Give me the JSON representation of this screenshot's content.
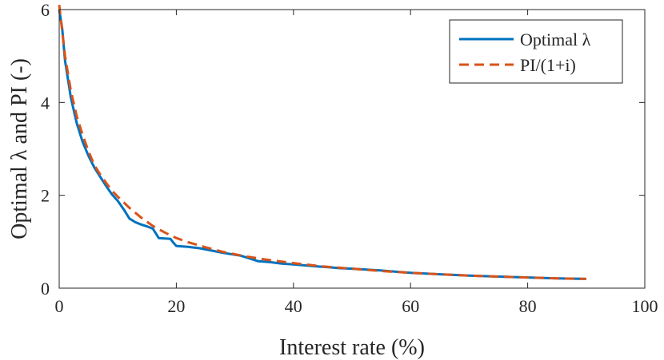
{
  "chart_data": {
    "type": "line",
    "title": "",
    "xlabel": "Interest rate (%)",
    "ylabel": "Optimal λ and PI (-)",
    "xlim": [
      0,
      100
    ],
    "ylim": [
      0,
      6
    ],
    "xticks": [
      0,
      20,
      40,
      60,
      80,
      100
    ],
    "yticks": [
      0,
      2,
      4,
      6
    ],
    "grid": false,
    "legend_position": "top-right",
    "series": [
      {
        "name": "Optimal λ",
        "style": "solid",
        "color": "#0072BD",
        "x": [
          0,
          0.5,
          1,
          2,
          3,
          4,
          5,
          6,
          7,
          8,
          9,
          10,
          11,
          12,
          13,
          14,
          15,
          16,
          17,
          18,
          19,
          19.5,
          20,
          22,
          24,
          26,
          28,
          30,
          31,
          32,
          33,
          34,
          36,
          38,
          40,
          42,
          44,
          46,
          48,
          50,
          55,
          60,
          65,
          70,
          75,
          80,
          85,
          90
        ],
        "y": [
          6.0,
          5.6,
          4.9,
          4.1,
          3.55,
          3.15,
          2.85,
          2.6,
          2.4,
          2.2,
          2.02,
          1.88,
          1.7,
          1.5,
          1.42,
          1.37,
          1.33,
          1.28,
          1.08,
          1.07,
          1.06,
          0.98,
          0.91,
          0.89,
          0.86,
          0.81,
          0.76,
          0.72,
          0.7,
          0.66,
          0.62,
          0.58,
          0.56,
          0.53,
          0.51,
          0.49,
          0.47,
          0.45,
          0.43,
          0.42,
          0.38,
          0.33,
          0.3,
          0.27,
          0.25,
          0.23,
          0.21,
          0.2
        ]
      },
      {
        "name": "PI/(1+i)",
        "style": "dashed",
        "color": "#D95319",
        "x": [
          0,
          0.5,
          1,
          2,
          3,
          4,
          5,
          6,
          7,
          8,
          9,
          10,
          12,
          14,
          16,
          18,
          20,
          22,
          25,
          28,
          30,
          32,
          35,
          40,
          45,
          50,
          55,
          60,
          65,
          70,
          75,
          80,
          85,
          90
        ],
        "y": [
          6.1,
          5.55,
          5.0,
          4.25,
          3.7,
          3.3,
          2.95,
          2.65,
          2.45,
          2.27,
          2.1,
          1.97,
          1.73,
          1.52,
          1.34,
          1.2,
          1.08,
          0.99,
          0.88,
          0.78,
          0.73,
          0.68,
          0.62,
          0.54,
          0.47,
          0.42,
          0.37,
          0.33,
          0.3,
          0.27,
          0.25,
          0.23,
          0.21,
          0.2
        ]
      }
    ]
  }
}
